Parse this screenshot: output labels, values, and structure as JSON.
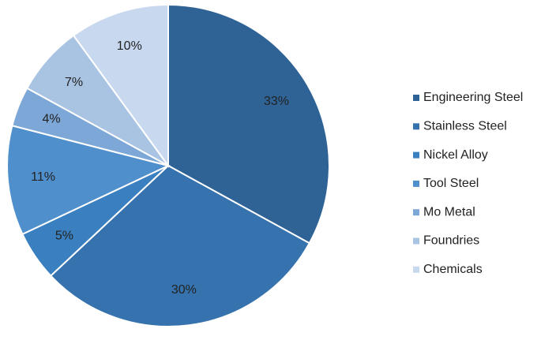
{
  "chart_data": {
    "type": "pie",
    "title": "",
    "start_angle_deg": 0,
    "direction": "clockwise",
    "legend_position": "right",
    "slices": [
      {
        "label": "Engineering Steel",
        "value": 33,
        "value_label": "33%",
        "color": "#2f6396"
      },
      {
        "label": "Stainless Steel",
        "value": 30,
        "value_label": "30%",
        "color": "#3572ae"
      },
      {
        "label": "Nickel Alloy",
        "value": 5,
        "value_label": "5%",
        "color": "#3a80c1"
      },
      {
        "label": "Tool Steel",
        "value": 11,
        "value_label": "11%",
        "color": "#4f8fcb"
      },
      {
        "label": "Mo Metal",
        "value": 4,
        "value_label": "4%",
        "color": "#7ca7d6"
      },
      {
        "label": "Foundries",
        "value": 7,
        "value_label": "7%",
        "color": "#a9c3e3"
      },
      {
        "label": "Chemicals",
        "value": 10,
        "value_label": "10%",
        "color": "#c8d8ee"
      }
    ]
  }
}
